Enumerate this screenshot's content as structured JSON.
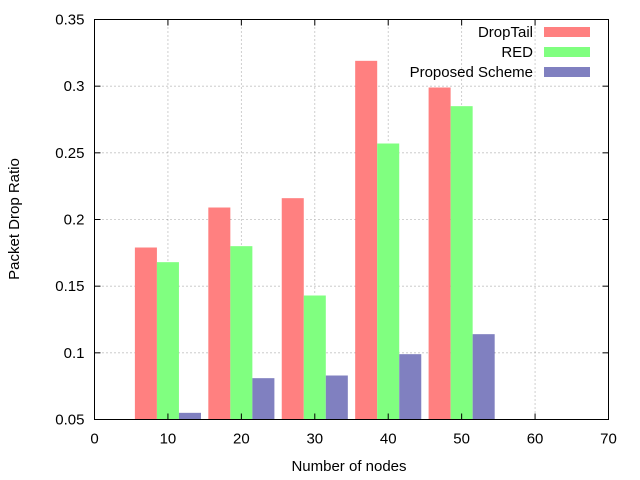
{
  "chart_data": {
    "type": "bar",
    "xlabel": "Number of nodes",
    "ylabel": "Packet Drop Ratio",
    "xlim": [
      0,
      70
    ],
    "ylim": [
      0.05,
      0.35
    ],
    "xticks": [
      0,
      10,
      20,
      30,
      40,
      50,
      60,
      70
    ],
    "yticks": [
      0.05,
      0.1,
      0.15,
      0.2,
      0.25,
      0.3,
      0.35
    ],
    "xtick_labels": [
      "0",
      "10",
      "20",
      "30",
      "40",
      "50",
      "60",
      "70"
    ],
    "ytick_labels": [
      "0.05",
      "0.1",
      "0.15",
      "0.2",
      "0.25",
      "0.3",
      "0.35"
    ],
    "grid": true,
    "legend_position": "top-right",
    "categories": [
      10,
      20,
      30,
      40,
      50
    ],
    "series": [
      {
        "name": "DropTail",
        "color": "#ff8080",
        "values": [
          0.179,
          0.209,
          0.216,
          0.319,
          0.299
        ]
      },
      {
        "name": "RED",
        "color": "#80ff80",
        "values": [
          0.168,
          0.18,
          0.143,
          0.257,
          0.285
        ]
      },
      {
        "name": "Proposed Scheme",
        "color": "#8080c0",
        "values": [
          0.055,
          0.081,
          0.083,
          0.099,
          0.114
        ]
      }
    ]
  }
}
